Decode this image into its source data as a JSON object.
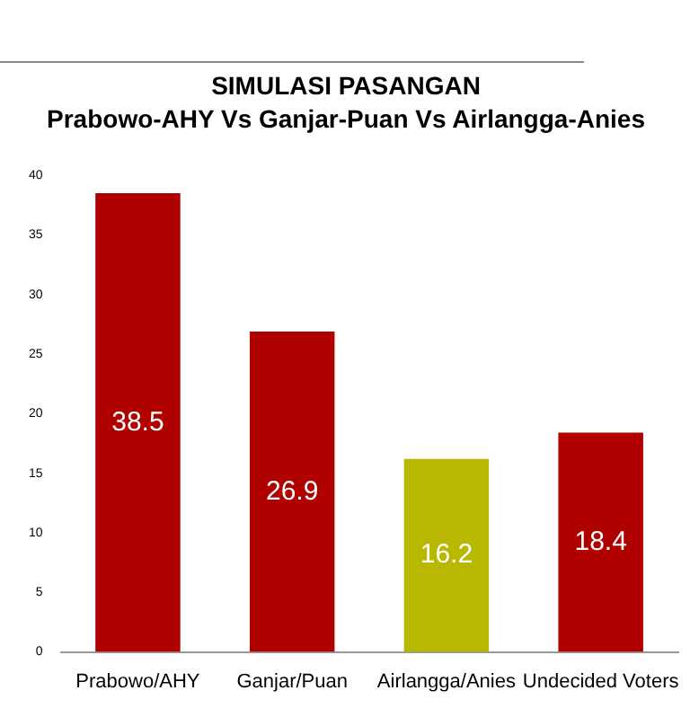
{
  "chart_data": {
    "type": "bar",
    "title": "SIMULASI PASANGAN",
    "subtitle": "Prabowo-AHY Vs Ganjar-Puan Vs Airlangga-Anies",
    "categories": [
      "Prabowo/AHY",
      "Ganjar/Puan",
      "Airlangga/Anies",
      "Undecided Voters"
    ],
    "values": [
      38.5,
      26.9,
      16.2,
      18.4
    ],
    "colors": [
      "#b00000",
      "#b00000",
      "#b8b800",
      "#b00000"
    ],
    "ylim": [
      0,
      40
    ],
    "yticks": [
      0,
      5,
      10,
      15,
      20,
      25,
      30,
      35,
      40
    ],
    "grid": false,
    "legend": false,
    "data_labels": true
  }
}
